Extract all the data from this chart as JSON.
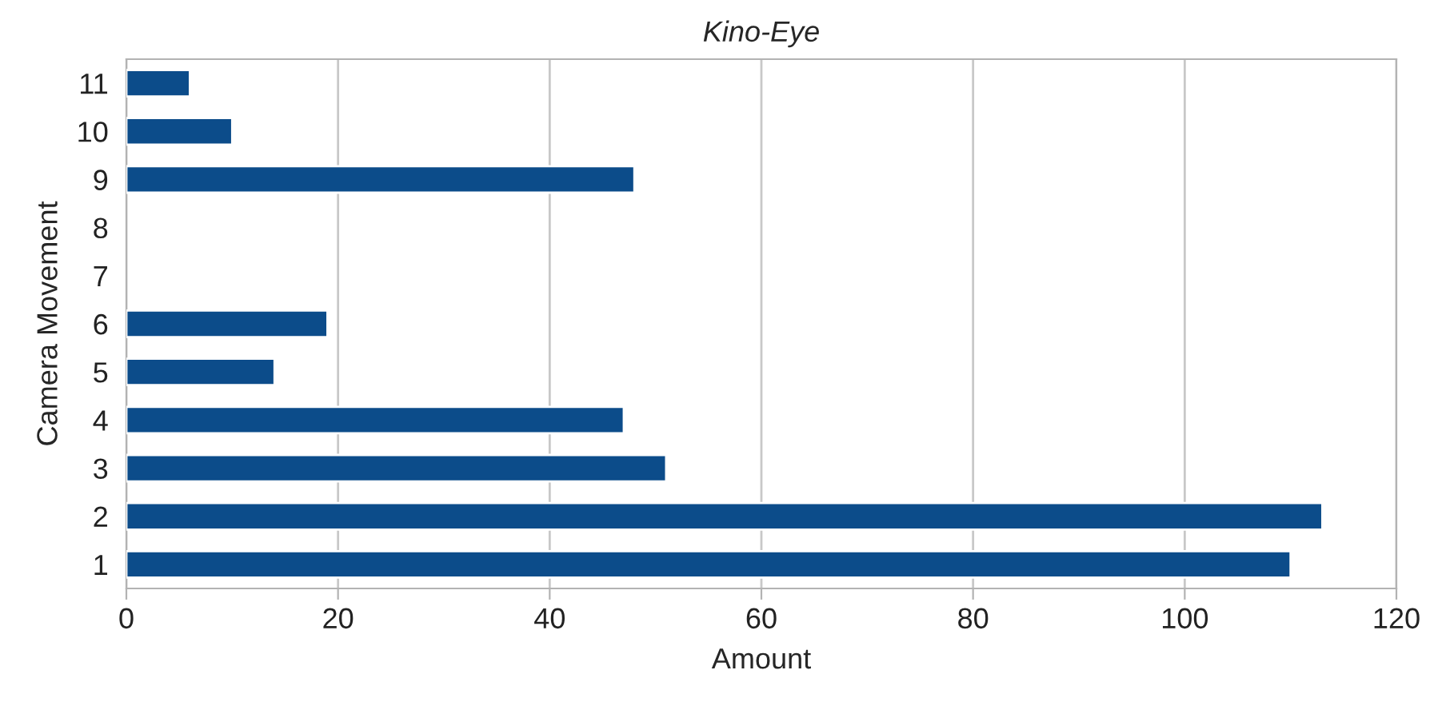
{
  "chart_data": {
    "type": "bar",
    "orientation": "horizontal",
    "title": "Kino-Eye",
    "xlabel": "Amount",
    "ylabel": "Camera Movement",
    "categories": [
      "11",
      "10",
      "9",
      "8",
      "7",
      "6",
      "5",
      "4",
      "3",
      "2",
      "1"
    ],
    "values": [
      6,
      10,
      48,
      null,
      null,
      19,
      14,
      47,
      51,
      113,
      110
    ],
    "color": "#0c4c8a",
    "xlim": [
      0,
      120
    ],
    "xticks": [
      0,
      20,
      40,
      60,
      80,
      100,
      120
    ],
    "grid": "x",
    "legend": false
  }
}
